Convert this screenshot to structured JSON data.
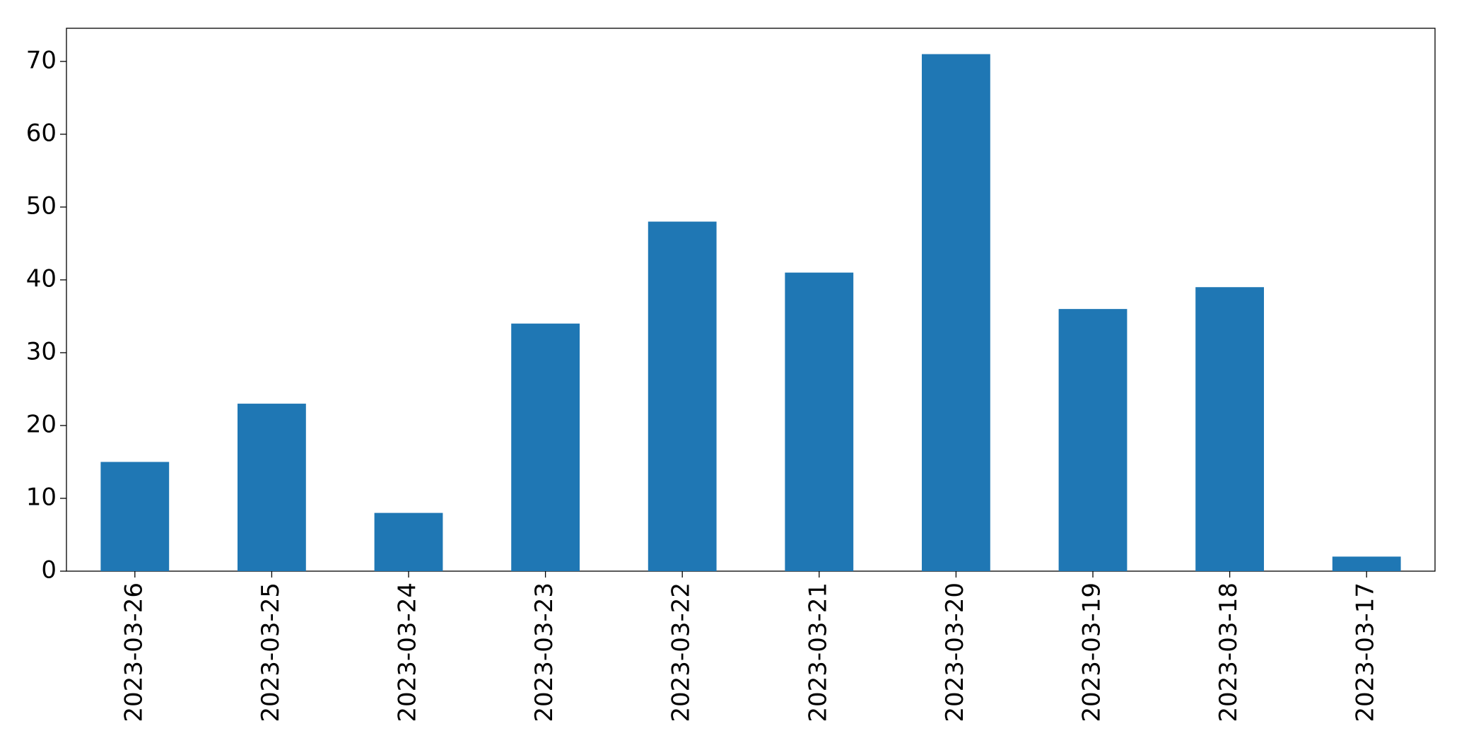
{
  "chart_data": {
    "type": "bar",
    "categories": [
      "2023-03-26",
      "2023-03-25",
      "2023-03-24",
      "2023-03-23",
      "2023-03-22",
      "2023-03-21",
      "2023-03-20",
      "2023-03-19",
      "2023-03-18",
      "2023-03-17"
    ],
    "values": [
      15,
      23,
      8,
      34,
      48,
      41,
      71,
      36,
      39,
      2
    ],
    "color": "#1f77b4",
    "ylim": [
      0,
      74.55
    ],
    "yticks": [
      0,
      10,
      20,
      30,
      40,
      50,
      60,
      70
    ],
    "grid": false
  }
}
